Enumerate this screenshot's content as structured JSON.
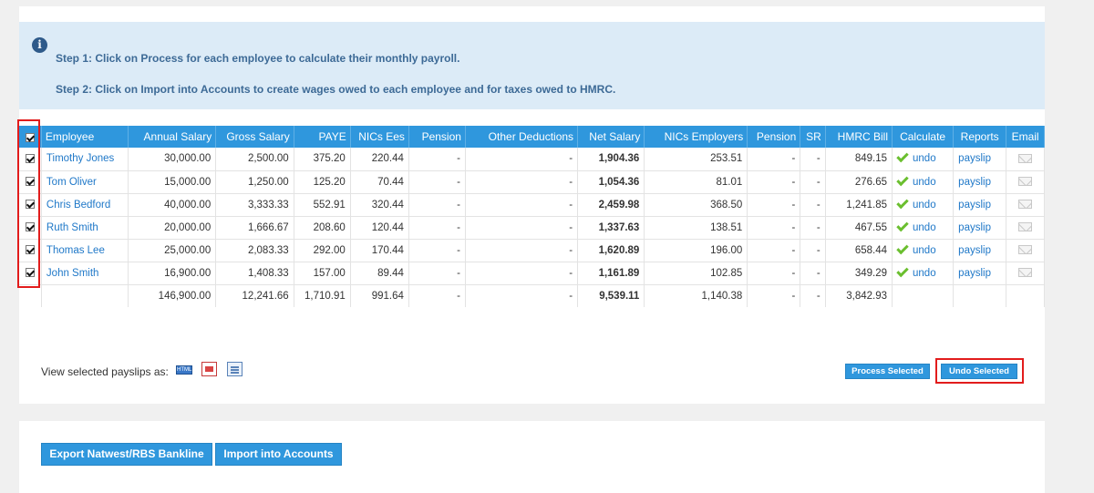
{
  "info": {
    "step1": "Step 1: Click on Process for each employee to calculate their monthly payroll.",
    "step2": "Step 2: Click on Import into Accounts to create wages owed to each employee and for taxes owed to HMRC."
  },
  "table": {
    "headers": [
      "Employee",
      "Annual Salary",
      "Gross Salary",
      "PAYE",
      "NICs Ees",
      "Pension",
      "Other Deductions",
      "Net Salary",
      "NICs Employers",
      "Pension",
      "SR",
      "HMRC Bill",
      "Calculate",
      "Reports",
      "Email"
    ],
    "rows": [
      {
        "employee": "Timothy Jones",
        "annual": "30,000.00",
        "gross": "2,500.00",
        "paye": "375.20",
        "nics_ees": "220.44",
        "pension": "-",
        "other": "-",
        "net": "1,904.36",
        "nics_er": "253.51",
        "pension_er": "-",
        "sr": "-",
        "hmrc": "849.15",
        "calc": "undo",
        "report": "payslip"
      },
      {
        "employee": "Tom Oliver",
        "annual": "15,000.00",
        "gross": "1,250.00",
        "paye": "125.20",
        "nics_ees": "70.44",
        "pension": "-",
        "other": "-",
        "net": "1,054.36",
        "nics_er": "81.01",
        "pension_er": "-",
        "sr": "-",
        "hmrc": "276.65",
        "calc": "undo",
        "report": "payslip"
      },
      {
        "employee": "Chris Bedford",
        "annual": "40,000.00",
        "gross": "3,333.33",
        "paye": "552.91",
        "nics_ees": "320.44",
        "pension": "-",
        "other": "-",
        "net": "2,459.98",
        "nics_er": "368.50",
        "pension_er": "-",
        "sr": "-",
        "hmrc": "1,241.85",
        "calc": "undo",
        "report": "payslip"
      },
      {
        "employee": "Ruth Smith",
        "annual": "20,000.00",
        "gross": "1,666.67",
        "paye": "208.60",
        "nics_ees": "120.44",
        "pension": "-",
        "other": "-",
        "net": "1,337.63",
        "nics_er": "138.51",
        "pension_er": "-",
        "sr": "-",
        "hmrc": "467.55",
        "calc": "undo",
        "report": "payslip"
      },
      {
        "employee": "Thomas Lee",
        "annual": "25,000.00",
        "gross": "2,083.33",
        "paye": "292.00",
        "nics_ees": "170.44",
        "pension": "-",
        "other": "-",
        "net": "1,620.89",
        "nics_er": "196.00",
        "pension_er": "-",
        "sr": "-",
        "hmrc": "658.44",
        "calc": "undo",
        "report": "payslip"
      },
      {
        "employee": "John Smith",
        "annual": "16,900.00",
        "gross": "1,408.33",
        "paye": "157.00",
        "nics_ees": "89.44",
        "pension": "-",
        "other": "-",
        "net": "1,161.89",
        "nics_er": "102.85",
        "pension_er": "-",
        "sr": "-",
        "hmrc": "349.29",
        "calc": "undo",
        "report": "payslip"
      }
    ],
    "totals": {
      "annual": "146,900.00",
      "gross": "12,241.66",
      "paye": "1,710.91",
      "nics_ees": "991.64",
      "pension": "-",
      "other": "-",
      "net": "9,539.11",
      "nics_er": "1,140.38",
      "pension_er": "-",
      "sr": "-",
      "hmrc": "3,842.93"
    }
  },
  "payslips": {
    "label": "View selected payslips as:",
    "html_icon_text": "HTML"
  },
  "buttons": {
    "process_selected": "Process Selected",
    "undo_selected": "Undo Selected",
    "export_bankline": "Export Natwest/RBS Bankline",
    "import_accounts": "Import into Accounts"
  },
  "colors": {
    "accent": "#2f97dd",
    "info_bg": "#dcebf7",
    "highlight": "#e21c1c",
    "check_green": "#6bbf2f"
  }
}
